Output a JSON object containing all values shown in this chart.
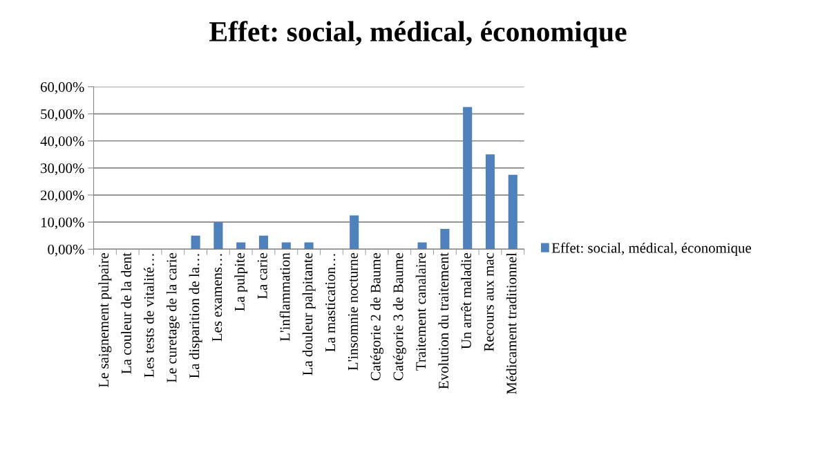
{
  "chart_data": {
    "type": "bar",
    "title": "Effet: social, médical, économique",
    "categories": [
      "Le saignement pulpaire",
      "La couleur de la dent",
      "Les tests de vitalité…",
      "Le curetage de la carie",
      "La disparition de la…",
      "Les examens…",
      "La pulpite",
      "La carie",
      "L'inflammation",
      "La douleur palpitante",
      "La mastication…",
      "L'insomnie nocturne",
      "Catégorie 2 de Baume",
      "Catégorie 3 de Baume",
      "Traitement canalaire",
      "Evolution du traitement",
      "Un arrêt maladie",
      "Recours aux mac",
      "Médicament traditionnel"
    ],
    "series": [
      {
        "name": "Effet: social, médical, économique",
        "color": "#4f81bd",
        "values": [
          0,
          0,
          0,
          0,
          5,
          10,
          2.5,
          5,
          2.5,
          2.5,
          0,
          12.5,
          0,
          0,
          2.5,
          7.5,
          52.5,
          35,
          27.5
        ]
      }
    ],
    "ylim": [
      0,
      60
    ],
    "yticks": [
      {
        "value": 0,
        "label": "0,00%"
      },
      {
        "value": 10,
        "label": "10,00%"
      },
      {
        "value": 20,
        "label": "20,00%"
      },
      {
        "value": 30,
        "label": "30,00%"
      },
      {
        "value": 40,
        "label": "40,00%"
      },
      {
        "value": 50,
        "label": "50,00%"
      },
      {
        "value": 60,
        "label": "60,00%"
      }
    ],
    "grid": "y",
    "legend": "right"
  }
}
